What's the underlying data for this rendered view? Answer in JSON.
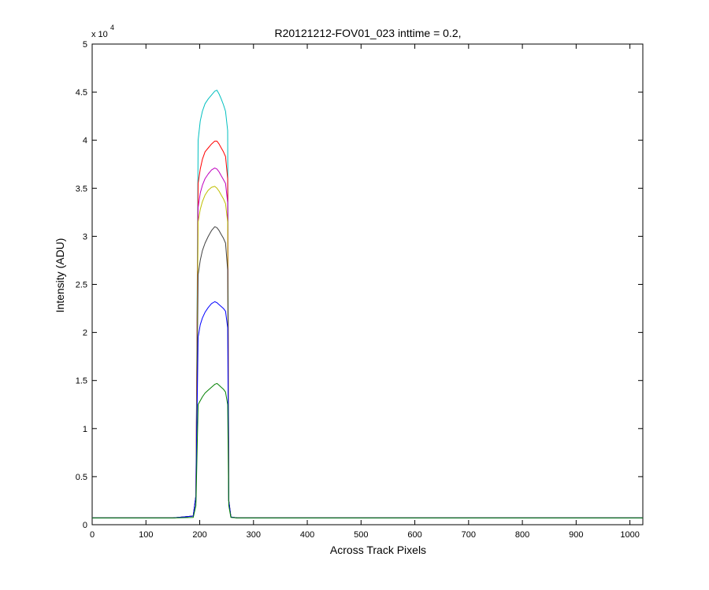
{
  "chart_data": {
    "type": "line",
    "title": "R20121212-FOV01_023 inttime = 0.2,",
    "xlabel": "Across Track Pixels",
    "ylabel": "Intensity (ADU)",
    "xlim": [
      0,
      1024
    ],
    "ylim": [
      0,
      50000
    ],
    "y_exponent_label": "x 10",
    "y_exponent_power": "4",
    "grid": false,
    "legend": "none",
    "x_ticks": [
      0,
      100,
      200,
      300,
      400,
      500,
      600,
      700,
      800,
      900,
      1000
    ],
    "x_tick_labels": [
      "0",
      "100",
      "200",
      "300",
      "400",
      "500",
      "600",
      "700",
      "800",
      "900",
      "1000"
    ],
    "y_ticks": [
      0,
      5000,
      10000,
      15000,
      20000,
      25000,
      30000,
      35000,
      40000,
      45000,
      50000
    ],
    "y_tick_labels": [
      "0",
      "0.5",
      "1",
      "1.5",
      "2",
      "2.5",
      "3",
      "3.5",
      "4",
      "4.5",
      "5"
    ],
    "series": [
      {
        "color": "#00bfbf",
        "x": [
          0,
          150,
          188,
          193,
          197,
          201,
          205,
          210,
          216,
          222,
          228,
          232,
          236,
          240,
          244,
          248,
          252,
          254,
          258,
          270,
          300,
          1024
        ],
        "y": [
          700,
          700,
          900,
          3000,
          40000,
          42000,
          43000,
          43800,
          44300,
          44700,
          45100,
          45200,
          44800,
          44300,
          43700,
          43000,
          41000,
          2500,
          800,
          700,
          700,
          700
        ]
      },
      {
        "color": "#ff0000",
        "x": [
          0,
          150,
          188,
          193,
          197,
          201,
          205,
          210,
          216,
          222,
          228,
          232,
          236,
          240,
          244,
          248,
          252,
          254,
          258,
          270,
          300,
          1024
        ],
        "y": [
          700,
          700,
          900,
          3000,
          35500,
          37000,
          38000,
          38800,
          39200,
          39600,
          39900,
          39900,
          39600,
          39200,
          38800,
          38300,
          36000,
          2500,
          800,
          700,
          700,
          700
        ]
      },
      {
        "color": "#bf00bf",
        "x": [
          0,
          150,
          188,
          193,
          197,
          201,
          205,
          210,
          216,
          222,
          228,
          232,
          236,
          240,
          244,
          248,
          252,
          254,
          258,
          270,
          300,
          1024
        ],
        "y": [
          700,
          700,
          900,
          3000,
          33000,
          34500,
          35300,
          36000,
          36500,
          36900,
          37100,
          37000,
          36700,
          36300,
          35900,
          35500,
          33500,
          2500,
          800,
          700,
          700,
          700
        ]
      },
      {
        "color": "#bfbf00",
        "x": [
          0,
          150,
          188,
          193,
          197,
          201,
          205,
          210,
          216,
          222,
          228,
          232,
          236,
          240,
          244,
          248,
          252,
          254,
          258,
          270,
          300,
          1024
        ],
        "y": [
          700,
          700,
          900,
          3000,
          31500,
          32800,
          33600,
          34300,
          34800,
          35100,
          35200,
          35000,
          34700,
          34300,
          33900,
          33400,
          31500,
          2500,
          800,
          700,
          700,
          700
        ]
      },
      {
        "color": "#404040",
        "x": [
          0,
          150,
          188,
          193,
          197,
          201,
          205,
          210,
          216,
          222,
          228,
          232,
          236,
          240,
          244,
          248,
          252,
          254,
          258,
          270,
          300,
          1024
        ],
        "y": [
          700,
          700,
          900,
          3000,
          26000,
          27500,
          28500,
          29300,
          30000,
          30600,
          31000,
          30900,
          30600,
          30200,
          29800,
          29300,
          26500,
          2500,
          800,
          700,
          700,
          700
        ]
      },
      {
        "color": "#0000ff",
        "x": [
          0,
          150,
          188,
          193,
          197,
          201,
          205,
          210,
          216,
          222,
          228,
          232,
          236,
          240,
          244,
          248,
          252,
          254,
          258,
          270,
          300,
          1024
        ],
        "y": [
          700,
          700,
          900,
          3000,
          19500,
          20800,
          21500,
          22100,
          22600,
          23000,
          23200,
          23100,
          22900,
          22700,
          22500,
          22200,
          20500,
          2500,
          800,
          700,
          700,
          700
        ]
      },
      {
        "color": "#008000",
        "x": [
          0,
          150,
          188,
          193,
          197,
          201,
          205,
          210,
          216,
          222,
          228,
          232,
          236,
          240,
          244,
          248,
          252,
          254,
          258,
          270,
          300,
          1024
        ],
        "y": [
          700,
          700,
          750,
          2000,
          12500,
          12900,
          13300,
          13700,
          14000,
          14300,
          14600,
          14700,
          14500,
          14300,
          14100,
          13800,
          12500,
          2000,
          750,
          700,
          700,
          700
        ]
      }
    ]
  }
}
